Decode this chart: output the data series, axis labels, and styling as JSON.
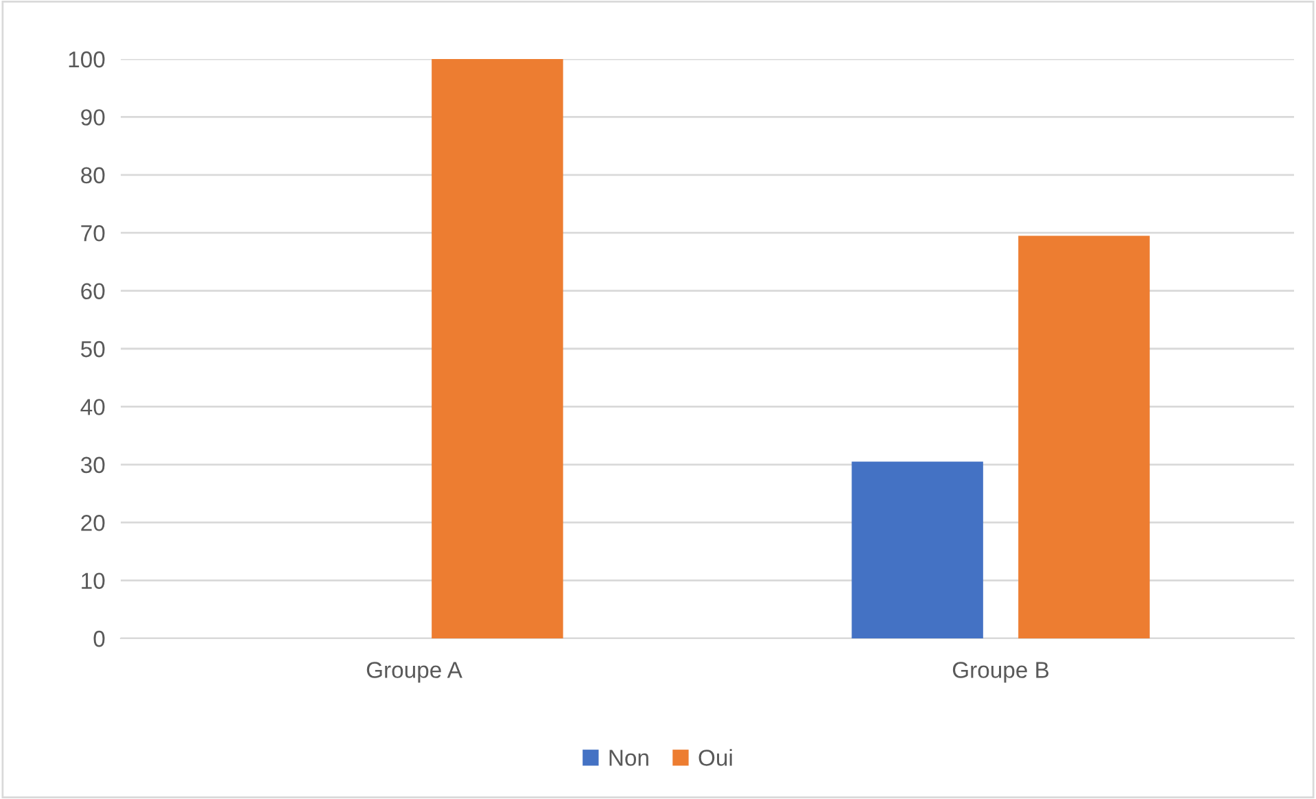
{
  "chart_data": {
    "type": "bar",
    "categories": [
      "Groupe A",
      "Groupe B"
    ],
    "series": [
      {
        "name": "Non",
        "color": "#4472c4",
        "values": [
          0,
          30.5
        ]
      },
      {
        "name": "Oui",
        "color": "#ed7d31",
        "values": [
          100,
          69.5
        ]
      }
    ],
    "ylim": [
      0,
      100
    ],
    "yticks": [
      0,
      10,
      20,
      30,
      40,
      50,
      60,
      70,
      80,
      90,
      100
    ],
    "grid": "y",
    "legend": "bottom"
  }
}
